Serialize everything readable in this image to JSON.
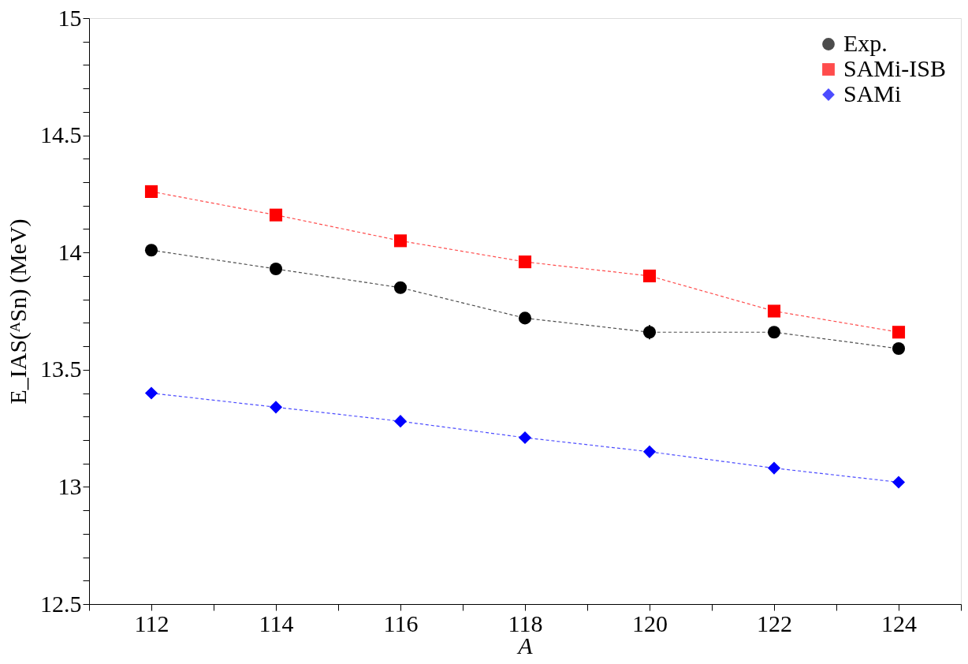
{
  "chart_data": {
    "type": "line",
    "xlabel": "A",
    "ylabel": "E_IAS(ᴬSn) (MeV)",
    "x": [
      112,
      114,
      116,
      118,
      120,
      122,
      124
    ],
    "series": [
      {
        "name": "Exp.",
        "color": "#000000",
        "marker": "circle",
        "values": [
          14.01,
          13.93,
          13.85,
          13.72,
          13.66,
          13.66,
          13.59
        ],
        "errors": [
          null,
          null,
          null,
          null,
          0.03,
          null,
          null
        ]
      },
      {
        "name": "SAMi-ISB",
        "color": "#ff0000",
        "marker": "square",
        "values": [
          14.26,
          14.16,
          14.05,
          13.96,
          13.9,
          13.75,
          13.66
        ]
      },
      {
        "name": "SAMi",
        "color": "#0000ff",
        "marker": "diamond",
        "values": [
          13.4,
          13.34,
          13.28,
          13.21,
          13.15,
          13.08,
          13.02
        ]
      }
    ],
    "xlim": [
      111,
      125
    ],
    "xticks": [
      {
        "value": 111,
        "label": null
      },
      112,
      {
        "value": 113,
        "label": null
      },
      114,
      {
        "value": 115,
        "label": null
      },
      116,
      {
        "value": 117,
        "label": null
      },
      118,
      {
        "value": 119,
        "label": null
      },
      120,
      {
        "value": 121,
        "label": null
      },
      122,
      {
        "value": 123,
        "label": null
      },
      124,
      {
        "value": 125,
        "label": null
      }
    ],
    "ylim": [
      12.5,
      15
    ],
    "yticks": [
      12.5,
      {
        "value": 12.6,
        "label": null
      },
      {
        "value": 12.7,
        "label": null
      },
      {
        "value": 12.8,
        "label": null
      },
      {
        "value": 12.9,
        "label": null
      },
      13,
      {
        "value": 13.1,
        "label": null
      },
      {
        "value": 13.2,
        "label": null
      },
      {
        "value": 13.3,
        "label": null
      },
      {
        "value": 13.4,
        "label": null
      },
      13.5,
      {
        "value": 13.6,
        "label": null
      },
      {
        "value": 13.7,
        "label": null
      },
      {
        "value": 13.8,
        "label": null
      },
      {
        "value": 13.9,
        "label": null
      },
      14,
      {
        "value": 14.1,
        "label": null
      },
      {
        "value": 14.2,
        "label": null
      },
      {
        "value": 14.3,
        "label": null
      },
      {
        "value": 14.4,
        "label": null
      },
      14.5,
      {
        "value": 14.6,
        "label": null
      },
      {
        "value": 14.7,
        "label": null
      },
      {
        "value": 14.8,
        "label": null
      },
      {
        "value": 14.9,
        "label": null
      },
      15
    ],
    "grid": false,
    "legend": "top right",
    "line_style": "dashed"
  }
}
